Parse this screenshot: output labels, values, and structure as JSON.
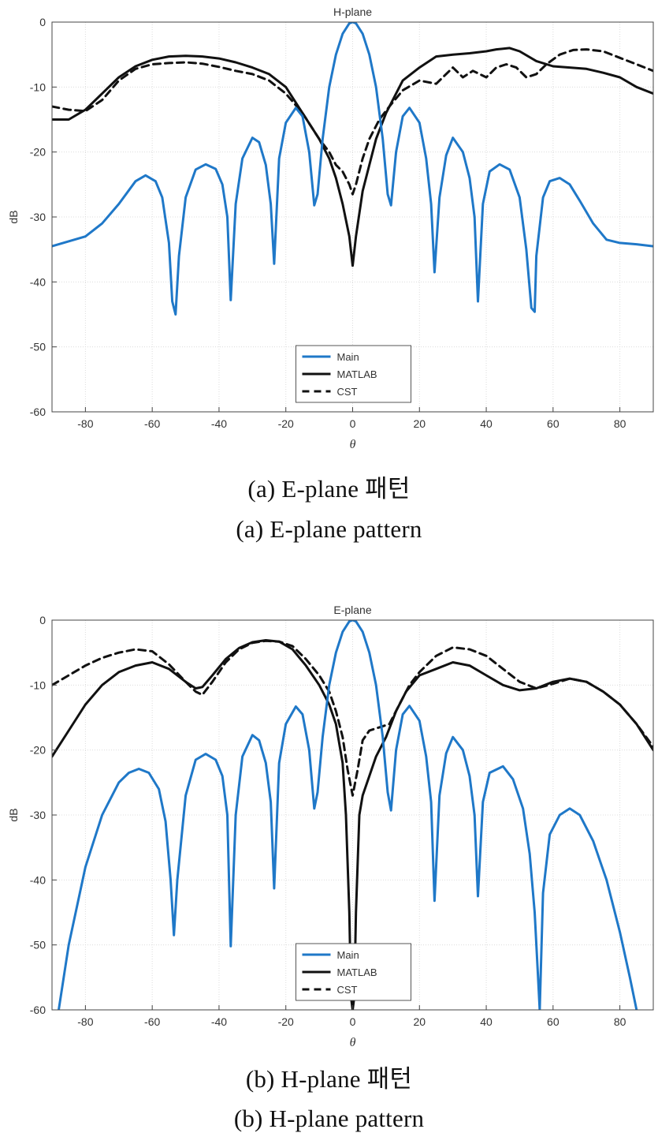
{
  "figures": [
    {
      "caption_ko": "(a)  E-plane  패턴",
      "caption_en": "(a)  E-plane  pattern"
    },
    {
      "caption_ko": "(b)  H-plane  패턴",
      "caption_en": "(b)  H-plane  pattern"
    }
  ],
  "chart_data": [
    {
      "type": "line",
      "title": "H-plane",
      "xlabel": "θ",
      "ylabel": "dB",
      "xlim": [
        -90,
        90
      ],
      "ylim": [
        -60,
        0
      ],
      "xticks": [
        -80,
        -60,
        -40,
        -20,
        0,
        20,
        40,
        60,
        80
      ],
      "yticks": [
        0,
        -10,
        -20,
        -30,
        -40,
        -50,
        -60
      ],
      "grid": true,
      "legend": "bottom-center",
      "colors": {
        "Main": "#1f78c8",
        "MATLAB": "#111111",
        "CST": "#111111"
      },
      "series": [
        {
          "name": "Main",
          "style": "solid",
          "x": [
            -90,
            -80,
            -75,
            -70,
            -65,
            -62,
            -59,
            -57,
            -55,
            -54,
            -53,
            -52,
            -50,
            -47,
            -44,
            -41,
            -39,
            -37.5,
            -36.5,
            -35,
            -33,
            -30,
            -28,
            -26,
            -24.5,
            -23.5,
            -22,
            -20,
            -17,
            -15,
            -13,
            -11.5,
            -10.5,
            -9,
            -7,
            -5,
            -3,
            -1,
            0,
            1,
            3,
            5,
            7,
            9,
            10.5,
            11.5,
            13,
            15,
            17,
            20,
            22,
            23.5,
            24.5,
            26,
            28,
            30,
            33,
            35,
            36.5,
            37.5,
            39,
            41,
            44,
            47,
            50,
            52,
            53.5,
            54.5,
            55,
            57,
            59,
            62,
            65,
            68,
            72,
            76,
            80,
            85,
            90
          ],
          "y": [
            -34.5,
            -33,
            -31,
            -28,
            -24.5,
            -23.6,
            -24.5,
            -27,
            -34,
            -43,
            -45,
            -36,
            -27,
            -22.7,
            -21.9,
            -22.6,
            -25,
            -30,
            -42.8,
            -28,
            -21,
            -17.8,
            -18.5,
            -22,
            -28,
            -37.2,
            -21,
            -15.5,
            -13.2,
            -14.5,
            -20,
            -28.2,
            -26.5,
            -18,
            -10,
            -5,
            -1.8,
            -0.2,
            0,
            -0.2,
            -1.8,
            -5,
            -10,
            -18,
            -26.5,
            -28.2,
            -20,
            -14.5,
            -13.2,
            -15.5,
            -21,
            -28,
            -38.5,
            -27,
            -20.5,
            -17.8,
            -20,
            -24,
            -30,
            -43,
            -28,
            -23,
            -21.9,
            -22.7,
            -27,
            -35,
            -44,
            -44.6,
            -36,
            -27,
            -24.5,
            -24,
            -25,
            -27.5,
            -31,
            -33.5,
            -34,
            -34.2,
            -34.5
          ]
        },
        {
          "name": "MATLAB",
          "style": "solid",
          "x": [
            -90,
            -85,
            -80,
            -75,
            -70,
            -65,
            -60,
            -55,
            -50,
            -45,
            -40,
            -35,
            -30,
            -25,
            -20,
            -15,
            -10,
            -7,
            -5,
            -3,
            -1,
            0,
            1,
            3,
            5,
            7,
            10,
            15,
            20,
            25,
            30,
            35,
            40,
            43,
            47,
            50,
            55,
            60,
            65,
            70,
            75,
            80,
            85,
            90
          ],
          "y": [
            -15,
            -15,
            -13.5,
            -11,
            -8.5,
            -6.8,
            -5.8,
            -5.3,
            -5.2,
            -5.3,
            -5.6,
            -6.2,
            -7,
            -8,
            -10,
            -14,
            -18,
            -21,
            -24,
            -28,
            -33,
            -37.5,
            -33,
            -26,
            -22,
            -18,
            -14,
            -9,
            -7,
            -5.3,
            -5,
            -4.8,
            -4.5,
            -4.2,
            -4,
            -4.5,
            -6,
            -6.8,
            -7,
            -7.2,
            -7.8,
            -8.5,
            -10,
            -11
          ]
        },
        {
          "name": "CST",
          "style": "dashed",
          "x": [
            -90,
            -85,
            -80,
            -75,
            -70,
            -65,
            -60,
            -55,
            -50,
            -45,
            -40,
            -35,
            -30,
            -25,
            -20,
            -15,
            -10,
            -7,
            -5,
            -3,
            -1,
            0,
            1,
            3,
            5,
            8,
            11,
            15,
            20,
            25,
            30,
            33,
            36,
            40,
            43,
            46,
            49,
            52,
            55,
            58,
            62,
            66,
            70,
            75,
            80,
            85,
            90
          ],
          "y": [
            -13,
            -13.5,
            -13.7,
            -12,
            -9,
            -7.2,
            -6.5,
            -6.3,
            -6.2,
            -6.4,
            -6.9,
            -7.5,
            -8,
            -9,
            -11,
            -14,
            -18,
            -20,
            -22,
            -23,
            -25,
            -26.5,
            -25,
            -21,
            -18,
            -15,
            -13,
            -10.5,
            -9,
            -9.5,
            -7,
            -8.5,
            -7.5,
            -8.5,
            -7,
            -6.5,
            -7,
            -8.5,
            -8,
            -6.5,
            -5,
            -4.3,
            -4.2,
            -4.5,
            -5.5,
            -6.5,
            -7.5
          ]
        }
      ]
    },
    {
      "type": "line",
      "title": "E-plane",
      "xlabel": "θ",
      "ylabel": "dB",
      "xlim": [
        -90,
        90
      ],
      "ylim": [
        -60,
        0
      ],
      "xticks": [
        -80,
        -60,
        -40,
        -20,
        0,
        20,
        40,
        60,
        80
      ],
      "yticks": [
        0,
        -10,
        -20,
        -30,
        -40,
        -50,
        -60
      ],
      "grid": true,
      "legend": "bottom-center",
      "colors": {
        "Main": "#1f78c8",
        "MATLAB": "#111111",
        "CST": "#111111"
      },
      "series": [
        {
          "name": "Main",
          "style": "solid",
          "x": [
            -88,
            -85,
            -80,
            -75,
            -70,
            -67,
            -64,
            -61,
            -58,
            -56,
            -54.5,
            -53.5,
            -52.5,
            -50,
            -47,
            -44,
            -41,
            -39,
            -37.5,
            -36.5,
            -35,
            -33,
            -30,
            -28,
            -26,
            -24.5,
            -23.5,
            -22,
            -20,
            -17,
            -15,
            -13,
            -11.5,
            -10.5,
            -9,
            -7,
            -5,
            -3,
            -1,
            0,
            1,
            3,
            5,
            7,
            9,
            10.5,
            11.5,
            13,
            15,
            17,
            20,
            22,
            23.5,
            24.5,
            26,
            28,
            30,
            33,
            35,
            36.5,
            37.5,
            39,
            41,
            45,
            48,
            51,
            53,
            54.5,
            55.5,
            56,
            57,
            59,
            62,
            65,
            68,
            72,
            76,
            80,
            83,
            85
          ],
          "y": [
            -60,
            -50,
            -38,
            -30,
            -25,
            -23.5,
            -22.9,
            -23.5,
            -26,
            -31,
            -40,
            -48.5,
            -40,
            -27,
            -21.5,
            -20.6,
            -21.5,
            -24,
            -30,
            -50.2,
            -30,
            -21,
            -17.7,
            -18.5,
            -22,
            -28,
            -41.3,
            -22,
            -16,
            -13.3,
            -14.5,
            -20,
            -29,
            -26.5,
            -18,
            -10,
            -5,
            -1.8,
            -0.2,
            0,
            -0.2,
            -1.8,
            -5,
            -10,
            -18,
            -26.5,
            -29.3,
            -20,
            -14.5,
            -13.2,
            -15.5,
            -21,
            -28,
            -43.2,
            -27,
            -20.5,
            -18,
            -20,
            -24,
            -30,
            -42.5,
            -28,
            -23.5,
            -22.5,
            -24.5,
            -29,
            -36,
            -45,
            -55,
            -60,
            -42,
            -33,
            -30,
            -29,
            -30,
            -34,
            -40,
            -48,
            -55,
            -60
          ]
        },
        {
          "name": "MATLAB",
          "style": "solid",
          "x": [
            -90,
            -85,
            -80,
            -75,
            -70,
            -65,
            -60,
            -55,
            -50,
            -47,
            -45,
            -42,
            -38,
            -34,
            -30,
            -26,
            -22,
            -18,
            -14,
            -10,
            -7,
            -5,
            -3,
            -2,
            -1,
            -0.5,
            0,
            0.5,
            1,
            2,
            3,
            5,
            7,
            10,
            13,
            16,
            20,
            25,
            30,
            35,
            40,
            45,
            50,
            55,
            60,
            65,
            70,
            75,
            80,
            85,
            90
          ],
          "y": [
            -21,
            -17,
            -13,
            -10,
            -8,
            -7,
            -6.5,
            -7.5,
            -9.5,
            -10.5,
            -10.3,
            -8.5,
            -6,
            -4.3,
            -3.4,
            -3.1,
            -3.3,
            -4.5,
            -7,
            -10,
            -13,
            -16,
            -22,
            -30,
            -45,
            -58,
            -60,
            -58,
            -45,
            -30,
            -27,
            -24,
            -21,
            -18,
            -14,
            -11,
            -8.5,
            -7.5,
            -6.5,
            -7,
            -8.5,
            -10,
            -10.8,
            -10.5,
            -9.5,
            -9,
            -9.5,
            -11,
            -13,
            -16,
            -20
          ]
        },
        {
          "name": "CST",
          "style": "dashed",
          "x": [
            -90,
            -85,
            -80,
            -75,
            -70,
            -65,
            -60,
            -55,
            -50,
            -47,
            -45,
            -42,
            -38,
            -34,
            -30,
            -26,
            -22,
            -18,
            -14,
            -10,
            -7,
            -5,
            -3,
            -1.5,
            0,
            1.5,
            3,
            5,
            8,
            11,
            14,
            17,
            20,
            25,
            30,
            35,
            40,
            45,
            50,
            55,
            60,
            65,
            70,
            75,
            80,
            85,
            90
          ],
          "y": [
            -10,
            -8.5,
            -7,
            -5.8,
            -5,
            -4.5,
            -4.8,
            -6.8,
            -9.5,
            -11,
            -11.5,
            -9.5,
            -6.5,
            -4.5,
            -3.5,
            -3.2,
            -3.3,
            -4,
            -6,
            -8.5,
            -11,
            -14,
            -18,
            -23,
            -27,
            -23,
            -18.5,
            -17,
            -16.5,
            -16,
            -13,
            -10,
            -8,
            -5.5,
            -4.2,
            -4.5,
            -5.5,
            -7.5,
            -9.5,
            -10.5,
            -9.8,
            -9,
            -9.5,
            -11,
            -13,
            -16,
            -19.5
          ]
        }
      ]
    }
  ]
}
